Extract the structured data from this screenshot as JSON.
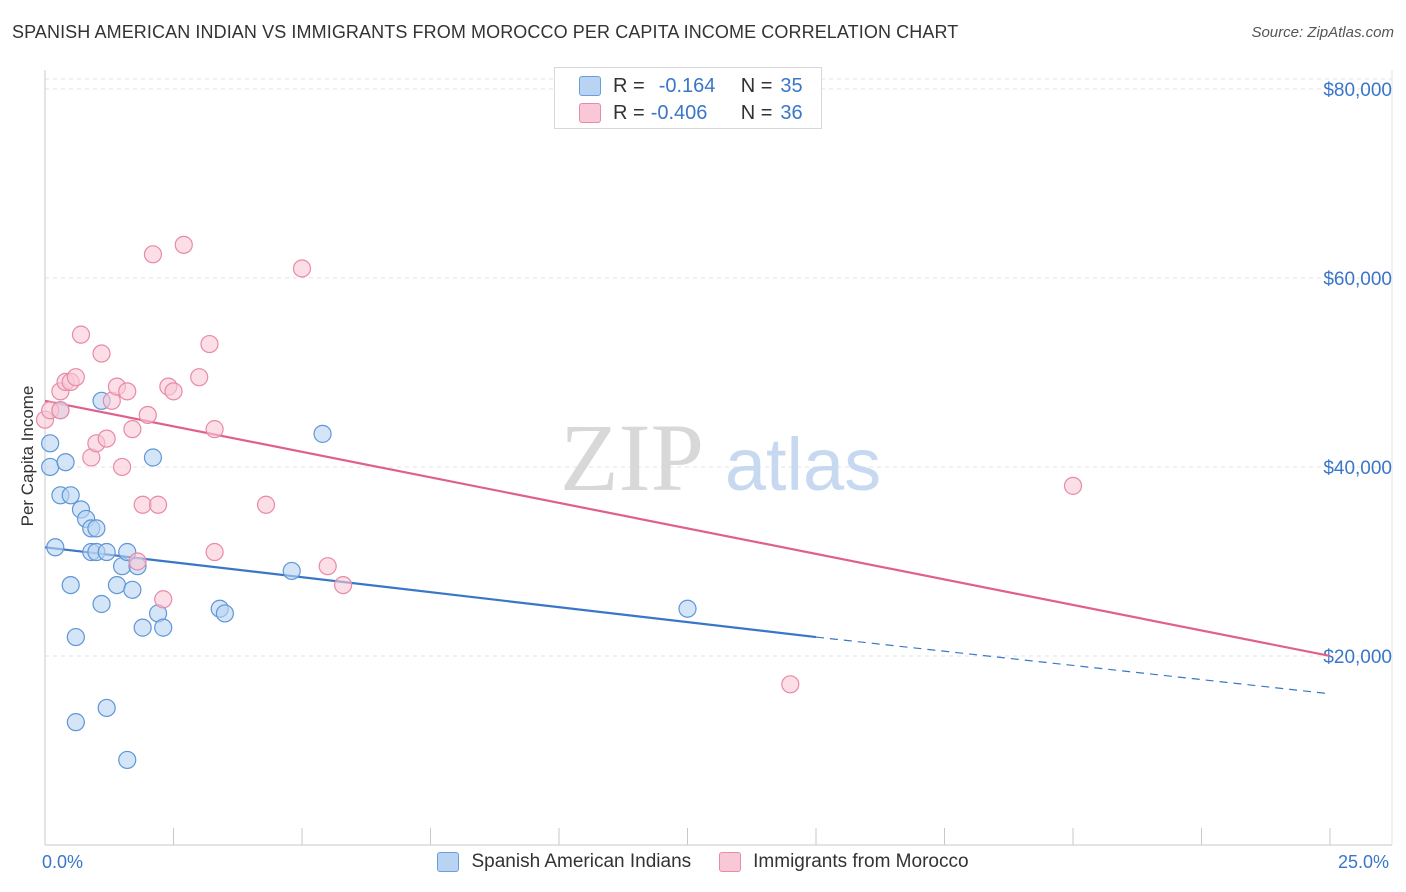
{
  "title": "SPANISH AMERICAN INDIAN VS IMMIGRANTS FROM MOROCCO PER CAPITA INCOME CORRELATION CHART",
  "source": "Source: ZipAtlas.com",
  "watermark": {
    "zip": "ZIP",
    "atlas": "atlas"
  },
  "legend_top": {
    "rows": [
      {
        "r_label": "R =",
        "r_value": "-0.164",
        "n_label": "N =",
        "n_value": "35"
      },
      {
        "r_label": "R =",
        "r_value": "-0.406",
        "n_label": "N =",
        "n_value": "36"
      }
    ]
  },
  "colors": {
    "blue": "#3a76c8",
    "blue_fill": "#b9d3f3",
    "pink": "#e0608a",
    "pink_fill": "#f9c8d6",
    "axis_text": "#3a76c8"
  },
  "chart_data": {
    "type": "scatter",
    "title": "SPANISH AMERICAN INDIAN VS IMMIGRANTS FROM MOROCCO PER CAPITA INCOME CORRELATION CHART",
    "xlabel": "",
    "ylabel": "Per Capita Income",
    "x_tick_labels": [
      "0.0%",
      "25.0%"
    ],
    "xlim": [
      0,
      25
    ],
    "ylim": [
      0,
      82000
    ],
    "y_ticks": [
      20000,
      40000,
      60000,
      80000
    ],
    "y_tick_labels": [
      "$20,000",
      "$40,000",
      "$60,000",
      "$80,000"
    ],
    "grid": true,
    "legend": "bottom-center",
    "series": [
      {
        "name": "Spanish American Indians",
        "color": "#3a76c8",
        "points": [
          [
            0.1,
            42500
          ],
          [
            0.1,
            40000
          ],
          [
            0.2,
            31500
          ],
          [
            0.3,
            37000
          ],
          [
            0.3,
            46000
          ],
          [
            0.4,
            40500
          ],
          [
            0.5,
            27500
          ],
          [
            0.5,
            37000
          ],
          [
            0.6,
            13000
          ],
          [
            0.6,
            22000
          ],
          [
            0.7,
            35500
          ],
          [
            0.8,
            34500
          ],
          [
            0.9,
            33500
          ],
          [
            0.9,
            31000
          ],
          [
            1.0,
            31000
          ],
          [
            1.0,
            33500
          ],
          [
            1.1,
            47000
          ],
          [
            1.1,
            25500
          ],
          [
            1.2,
            14500
          ],
          [
            1.2,
            31000
          ],
          [
            1.4,
            27500
          ],
          [
            1.5,
            29500
          ],
          [
            1.6,
            31000
          ],
          [
            1.6,
            9000
          ],
          [
            1.7,
            27000
          ],
          [
            1.8,
            29500
          ],
          [
            1.9,
            23000
          ],
          [
            2.1,
            41000
          ],
          [
            2.2,
            24500
          ],
          [
            2.3,
            23000
          ],
          [
            3.4,
            25000
          ],
          [
            3.5,
            24500
          ],
          [
            4.8,
            29000
          ],
          [
            5.4,
            43500
          ],
          [
            12.5,
            25000
          ]
        ],
        "trend": {
          "x0": 0,
          "y0": 31500,
          "x1": 15,
          "y1": 22000,
          "dash_to_x": 25,
          "dash_to_y": 16000
        }
      },
      {
        "name": "Immigrants from Morocco",
        "color": "#e0608a",
        "points": [
          [
            0.0,
            45000
          ],
          [
            0.1,
            46000
          ],
          [
            0.3,
            46000
          ],
          [
            0.3,
            48000
          ],
          [
            0.4,
            49000
          ],
          [
            0.5,
            49000
          ],
          [
            0.6,
            49500
          ],
          [
            0.7,
            54000
          ],
          [
            0.9,
            41000
          ],
          [
            1.0,
            42500
          ],
          [
            1.1,
            52000
          ],
          [
            1.2,
            43000
          ],
          [
            1.3,
            47000
          ],
          [
            1.4,
            48500
          ],
          [
            1.5,
            40000
          ],
          [
            1.6,
            48000
          ],
          [
            1.7,
            44000
          ],
          [
            1.8,
            30000
          ],
          [
            1.9,
            36000
          ],
          [
            2.0,
            45500
          ],
          [
            2.1,
            62500
          ],
          [
            2.2,
            36000
          ],
          [
            2.3,
            26000
          ],
          [
            2.4,
            48500
          ],
          [
            2.5,
            48000
          ],
          [
            2.7,
            63500
          ],
          [
            3.0,
            49500
          ],
          [
            3.2,
            53000
          ],
          [
            3.3,
            44000
          ],
          [
            3.3,
            31000
          ],
          [
            4.3,
            36000
          ],
          [
            5.0,
            61000
          ],
          [
            5.5,
            29500
          ],
          [
            5.8,
            27500
          ],
          [
            14.5,
            17000
          ],
          [
            20.0,
            38000
          ]
        ],
        "trend": {
          "x0": 0,
          "y0": 47000,
          "x1": 25,
          "y1": 20000
        }
      }
    ]
  },
  "bottom_legend": [
    {
      "label": "Spanish American Indians"
    },
    {
      "label": "Immigrants from Morocco"
    }
  ]
}
